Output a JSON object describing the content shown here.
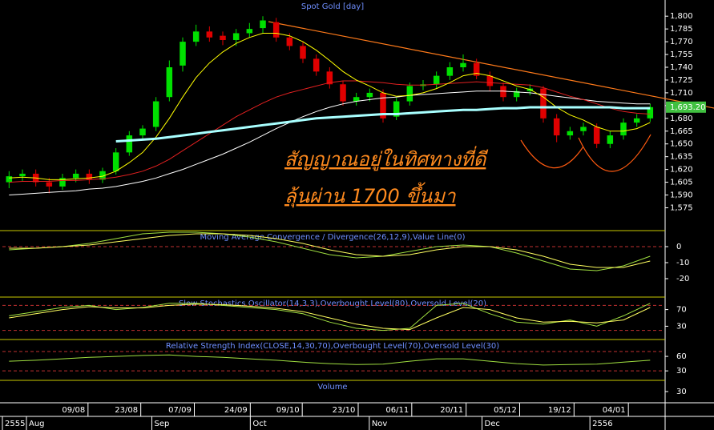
{
  "chart_data": {
    "type": "candlestick",
    "title": "Spot Gold [day]",
    "xlim": [
      -0.5,
      49
    ],
    "ylim": [
      1551,
      1819
    ],
    "yticks": [
      {
        "value": 1575,
        "label": "1,575"
      },
      {
        "value": 1590,
        "label": "1,590"
      },
      {
        "value": 1605,
        "label": "1,605"
      },
      {
        "value": 1620,
        "label": "1,620"
      },
      {
        "value": 1635,
        "label": "1,635"
      },
      {
        "value": 1650,
        "label": "1,650"
      },
      {
        "value": 1665,
        "label": "1,665"
      },
      {
        "value": 1680,
        "label": "1,680"
      },
      {
        "value": 1695,
        "label": "1,695"
      },
      {
        "value": 1710,
        "label": "1,710"
      },
      {
        "value": 1725,
        "label": "1,725"
      },
      {
        "value": 1740,
        "label": "1,740"
      },
      {
        "value": 1755,
        "label": "1,755"
      },
      {
        "value": 1770,
        "label": "1,770"
      },
      {
        "value": 1785,
        "label": "1,785"
      },
      {
        "value": 1800,
        "label": "1,800"
      }
    ],
    "xticks": [
      {
        "value": 4.83,
        "label": "09/08"
      },
      {
        "value": 8.78,
        "label": "23/08"
      },
      {
        "value": 12.79,
        "label": "07/09"
      },
      {
        "value": 16.98,
        "label": "24/09"
      },
      {
        "value": 20.87,
        "label": "09/10"
      },
      {
        "value": 25.06,
        "label": "23/10"
      },
      {
        "value": 29.07,
        "label": "06/11"
      },
      {
        "value": 33.14,
        "label": "20/11"
      },
      {
        "value": 37.15,
        "label": "05/12"
      },
      {
        "value": 41.22,
        "label": "19/12"
      },
      {
        "value": 45.29,
        "label": "04/01"
      }
    ],
    "period_ticks": [
      {
        "value": -0.5,
        "label": "2555"
      },
      {
        "value": 1.3,
        "label": "Aug"
      },
      {
        "value": 10.69,
        "label": "Sep"
      },
      {
        "value": 18.06,
        "label": "Oct"
      },
      {
        "value": 26.97,
        "label": "Nov"
      },
      {
        "value": 35.41,
        "label": "Dec"
      },
      {
        "value": 43.49,
        "label": "2556"
      }
    ],
    "up_color": "#00e000",
    "down_color": "#e00000",
    "open": [
      1605,
      1612,
      1615,
      1605,
      1600,
      1610,
      1615,
      1608,
      1618,
      1640,
      1660,
      1670,
      1705,
      1742,
      1770,
      1782,
      1777,
      1772,
      1780,
      1786,
      1793,
      1775,
      1765,
      1750,
      1735,
      1720,
      1700,
      1705,
      1710,
      1682,
      1700,
      1718,
      1720,
      1730,
      1740,
      1745,
      1730,
      1718,
      1705,
      1712,
      1715,
      1680,
      1660,
      1665,
      1670,
      1650,
      1660,
      1675,
      1680
    ],
    "high": [
      1618,
      1620,
      1620,
      1610,
      1615,
      1620,
      1620,
      1622,
      1645,
      1665,
      1672,
      1705,
      1748,
      1775,
      1790,
      1788,
      1782,
      1785,
      1792,
      1800,
      1798,
      1780,
      1770,
      1755,
      1740,
      1724,
      1710,
      1715,
      1714,
      1704,
      1722,
      1725,
      1735,
      1746,
      1755,
      1750,
      1735,
      1722,
      1716,
      1720,
      1718,
      1685,
      1670,
      1675,
      1674,
      1665,
      1680,
      1685,
      1697
    ],
    "low": [
      1598,
      1606,
      1600,
      1592,
      1596,
      1605,
      1603,
      1604,
      1614,
      1636,
      1655,
      1665,
      1700,
      1735,
      1765,
      1770,
      1766,
      1765,
      1775,
      1780,
      1770,
      1760,
      1745,
      1730,
      1715,
      1695,
      1695,
      1700,
      1675,
      1678,
      1695,
      1713,
      1715,
      1725,
      1735,
      1726,
      1712,
      1700,
      1700,
      1707,
      1675,
      1652,
      1655,
      1660,
      1645,
      1645,
      1655,
      1670,
      1676
    ],
    "close": [
      1612,
      1615,
      1605,
      1600,
      1610,
      1615,
      1608,
      1618,
      1640,
      1660,
      1668,
      1700,
      1740,
      1770,
      1782,
      1775,
      1772,
      1780,
      1785,
      1795,
      1775,
      1765,
      1750,
      1735,
      1720,
      1700,
      1705,
      1710,
      1680,
      1700,
      1718,
      1720,
      1730,
      1740,
      1745,
      1730,
      1718,
      1705,
      1712,
      1715,
      1680,
      1660,
      1665,
      1670,
      1650,
      1660,
      1675,
      1680,
      1693.2
    ],
    "series": [
      {
        "color": "#ffffff",
        "width": 1,
        "values": [
          1590,
          1591,
          1592,
          1593,
          1594,
          1595,
          1597,
          1598,
          1600,
          1603,
          1606,
          1610,
          1615,
          1620,
          1626,
          1632,
          1638,
          1645,
          1652,
          1660,
          1668,
          1675,
          1682,
          1688,
          1693,
          1697,
          1700,
          1702,
          1704,
          1705,
          1707,
          1708,
          1709,
          1710,
          1711,
          1712,
          1712,
          1712,
          1711,
          1710,
          1708,
          1706,
          1704,
          1702,
          1700,
          1699,
          1698,
          1697,
          1697
        ]
      },
      {
        "color": "#e02020",
        "width": 1,
        "values": [
          1605,
          1606,
          1606,
          1606,
          1607,
          1607,
          1608,
          1609,
          1611,
          1614,
          1618,
          1624,
          1632,
          1642,
          1652,
          1662,
          1672,
          1682,
          1690,
          1698,
          1705,
          1710,
          1714,
          1718,
          1722,
          1724,
          1724,
          1723,
          1722,
          1720,
          1719,
          1719,
          1720,
          1721,
          1722,
          1723,
          1722,
          1721,
          1720,
          1719,
          1716,
          1711,
          1706,
          1702,
          1697,
          1692,
          1688,
          1686,
          1685
        ]
      },
      {
        "color": "#ffff00",
        "width": 1,
        "values": [
          1610,
          1611,
          1610,
          1608,
          1608,
          1609,
          1610,
          1612,
          1618,
          1628,
          1640,
          1658,
          1680,
          1705,
          1728,
          1745,
          1758,
          1768,
          1775,
          1780,
          1780,
          1777,
          1770,
          1760,
          1748,
          1735,
          1725,
          1718,
          1710,
          1706,
          1707,
          1710,
          1715,
          1722,
          1730,
          1733,
          1730,
          1724,
          1718,
          1714,
          1705,
          1693,
          1684,
          1678,
          1670,
          1665,
          1665,
          1668,
          1675
        ]
      },
      {
        "color": "#a8ffff",
        "width": 3,
        "values": [
          null,
          null,
          null,
          null,
          null,
          null,
          null,
          null,
          1653,
          1654,
          1655,
          1656,
          1658,
          1660,
          1662,
          1664,
          1666,
          1668,
          1670,
          1672,
          1674,
          1676,
          1678,
          1680,
          1681,
          1682,
          1683,
          1684,
          1685,
          1685,
          1686,
          1687,
          1688,
          1689,
          1690,
          1690,
          1691,
          1692,
          1692,
          1693,
          1693,
          1693,
          1693,
          1693,
          1693,
          1693,
          1692,
          1692,
          1692
        ]
      }
    ],
    "last_price": {
      "value": 1693.2,
      "label": "1,693.20",
      "color": "#40c040"
    },
    "annotations": [
      "สัญญาณอยู่ในทิศทางที่ดี",
      "ลุ้นผ่าน 1700 ขึ้นมา"
    ],
    "panels": [
      {
        "type": "line",
        "title": "Moving Average Convergence / Divergence(26,12,9),Value Line(0)",
        "ylim": [
          -31,
          10
        ],
        "yticks": [
          0,
          -10,
          -20
        ],
        "levels": [
          0
        ],
        "x": [
          0,
          2,
          4,
          6,
          8,
          10,
          12,
          14,
          16,
          18,
          20,
          22,
          24,
          26,
          28,
          30,
          32,
          34,
          36,
          38,
          40,
          42,
          44,
          46,
          48
        ],
        "series": [
          {
            "color": "#a0e040",
            "values": [
              -2,
              -1,
              0,
              2,
              5,
              8,
              9,
              9,
              8,
              6,
              3,
              -1,
              -5,
              -7,
              -6,
              -3,
              0,
              1,
              0,
              -4,
              -9,
              -14,
              -15,
              -12,
              -6
            ]
          },
          {
            "color": "#ffff60",
            "values": [
              -1,
              -1,
              0,
              1,
              3,
              5,
              7,
              8,
              8,
              7,
              5,
              2,
              -2,
              -5,
              -6,
              -5,
              -2,
              0,
              0,
              -2,
              -6,
              -11,
              -13,
              -13,
              -9
            ]
          }
        ]
      },
      {
        "type": "line",
        "title": "Slow Stochastics Oscillator(14,3,3),Overbought Level(80),Oversold Level(20)",
        "ylim": [
          0,
          100
        ],
        "yticks": [
          70,
          30
        ],
        "levels": [
          80,
          20
        ],
        "x": [
          0,
          2,
          4,
          6,
          8,
          10,
          12,
          14,
          16,
          18,
          20,
          22,
          24,
          26,
          28,
          30,
          32,
          34,
          36,
          38,
          40,
          42,
          44,
          46,
          48
        ],
        "series": [
          {
            "color": "#a0e040",
            "values": [
              55,
              65,
              75,
              80,
              70,
              75,
              85,
              85,
              80,
              75,
              70,
              60,
              40,
              25,
              20,
              25,
              80,
              85,
              60,
              40,
              35,
              45,
              30,
              55,
              85
            ]
          },
          {
            "color": "#ffff60",
            "values": [
              50,
              60,
              70,
              77,
              74,
              74,
              80,
              83,
              82,
              78,
              73,
              65,
              50,
              35,
              25,
              22,
              50,
              75,
              70,
              50,
              40,
              42,
              38,
              45,
              75
            ]
          }
        ]
      },
      {
        "type": "line",
        "title": "Relative Strength Index(CLOSE,14,30,70),Overbought Level(70),Oversold Level(30)",
        "ylim": [
          12,
          95
        ],
        "yticks": [
          60,
          30
        ],
        "levels": [
          70,
          30
        ],
        "x": [
          0,
          2,
          4,
          6,
          8,
          10,
          12,
          14,
          16,
          18,
          20,
          22,
          24,
          26,
          28,
          30,
          32,
          34,
          36,
          38,
          40,
          42,
          44,
          46,
          48
        ],
        "series": [
          {
            "color": "#a0e040",
            "values": [
              50,
              52,
              55,
              58,
              60,
              62,
              63,
              60,
              58,
              55,
              52,
              48,
              45,
              43,
              44,
              50,
              55,
              55,
              50,
              45,
              42,
              43,
              44,
              48,
              52
            ]
          }
        ]
      },
      {
        "type": "line",
        "title": "Volume",
        "ylim": [
          0,
          60
        ],
        "yticks": [
          30
        ],
        "levels": [],
        "x": [],
        "series": []
      }
    ]
  }
}
